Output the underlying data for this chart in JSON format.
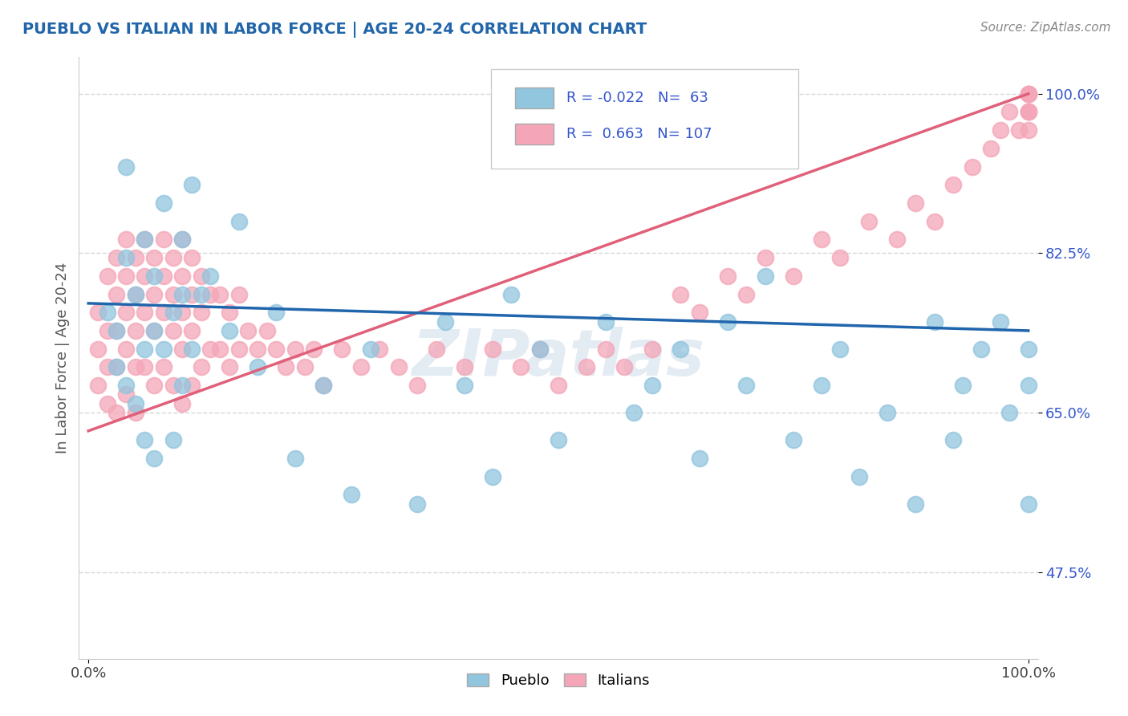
{
  "title": "PUEBLO VS ITALIAN IN LABOR FORCE | AGE 20-24 CORRELATION CHART",
  "source_text": "Source: ZipAtlas.com",
  "ylabel": "In Labor Force | Age 20-24",
  "watermark_text": "ZIPatlas",
  "legend_blue_label": "Pueblo",
  "legend_pink_label": "Italians",
  "blue_R": -0.022,
  "blue_N": 63,
  "pink_R": 0.663,
  "pink_N": 107,
  "blue_color": "#92c5de",
  "pink_color": "#f4a6b8",
  "blue_line_color": "#2166ac",
  "pink_line_color": "#e0607a",
  "ymin": 0.38,
  "ymax": 1.04,
  "ytick_vals": [
    0.475,
    0.65,
    0.825,
    1.0
  ],
  "ytick_labels": [
    "47.5%",
    "65.0%",
    "82.5%",
    "100.0%"
  ],
  "pueblo_x": [
    0.02,
    0.03,
    0.03,
    0.04,
    0.04,
    0.04,
    0.05,
    0.05,
    0.06,
    0.06,
    0.06,
    0.07,
    0.07,
    0.07,
    0.08,
    0.08,
    0.09,
    0.09,
    0.1,
    0.1,
    0.1,
    0.11,
    0.11,
    0.12,
    0.13,
    0.15,
    0.16,
    0.18,
    0.2,
    0.22,
    0.25,
    0.28,
    0.3,
    0.35,
    0.38,
    0.4,
    0.43,
    0.45,
    0.48,
    0.5,
    0.55,
    0.58,
    0.6,
    0.63,
    0.65,
    0.68,
    0.7,
    0.72,
    0.75,
    0.78,
    0.8,
    0.82,
    0.85,
    0.88,
    0.9,
    0.92,
    0.93,
    0.95,
    0.97,
    0.98,
    1.0,
    1.0,
    1.0
  ],
  "pueblo_y": [
    0.76,
    0.74,
    0.7,
    0.92,
    0.82,
    0.68,
    0.78,
    0.66,
    0.84,
    0.72,
    0.62,
    0.8,
    0.74,
    0.6,
    0.88,
    0.72,
    0.76,
    0.62,
    0.84,
    0.78,
    0.68,
    0.9,
    0.72,
    0.78,
    0.8,
    0.74,
    0.86,
    0.7,
    0.76,
    0.6,
    0.68,
    0.56,
    0.72,
    0.55,
    0.75,
    0.68,
    0.58,
    0.78,
    0.72,
    0.62,
    0.75,
    0.65,
    0.68,
    0.72,
    0.6,
    0.75,
    0.68,
    0.8,
    0.62,
    0.68,
    0.72,
    0.58,
    0.65,
    0.55,
    0.75,
    0.62,
    0.68,
    0.72,
    0.75,
    0.65,
    0.68,
    0.55,
    0.72
  ],
  "italian_x": [
    0.01,
    0.01,
    0.01,
    0.02,
    0.02,
    0.02,
    0.02,
    0.03,
    0.03,
    0.03,
    0.03,
    0.03,
    0.04,
    0.04,
    0.04,
    0.04,
    0.04,
    0.05,
    0.05,
    0.05,
    0.05,
    0.05,
    0.06,
    0.06,
    0.06,
    0.06,
    0.07,
    0.07,
    0.07,
    0.07,
    0.08,
    0.08,
    0.08,
    0.08,
    0.09,
    0.09,
    0.09,
    0.09,
    0.1,
    0.1,
    0.1,
    0.1,
    0.1,
    0.11,
    0.11,
    0.11,
    0.11,
    0.12,
    0.12,
    0.12,
    0.13,
    0.13,
    0.14,
    0.14,
    0.15,
    0.15,
    0.16,
    0.16,
    0.17,
    0.18,
    0.19,
    0.2,
    0.21,
    0.22,
    0.23,
    0.24,
    0.25,
    0.27,
    0.29,
    0.31,
    0.33,
    0.35,
    0.37,
    0.4,
    0.43,
    0.46,
    0.48,
    0.5,
    0.53,
    0.55,
    0.57,
    0.6,
    0.63,
    0.65,
    0.68,
    0.7,
    0.72,
    0.75,
    0.78,
    0.8,
    0.83,
    0.86,
    0.88,
    0.9,
    0.92,
    0.94,
    0.96,
    0.97,
    0.98,
    0.99,
    1.0,
    1.0,
    1.0,
    1.0,
    1.0,
    1.0,
    1.0
  ],
  "italian_y": [
    0.76,
    0.72,
    0.68,
    0.8,
    0.74,
    0.7,
    0.66,
    0.82,
    0.78,
    0.74,
    0.7,
    0.65,
    0.84,
    0.8,
    0.76,
    0.72,
    0.67,
    0.82,
    0.78,
    0.74,
    0.7,
    0.65,
    0.84,
    0.8,
    0.76,
    0.7,
    0.82,
    0.78,
    0.74,
    0.68,
    0.84,
    0.8,
    0.76,
    0.7,
    0.82,
    0.78,
    0.74,
    0.68,
    0.84,
    0.8,
    0.76,
    0.72,
    0.66,
    0.82,
    0.78,
    0.74,
    0.68,
    0.8,
    0.76,
    0.7,
    0.78,
    0.72,
    0.78,
    0.72,
    0.76,
    0.7,
    0.78,
    0.72,
    0.74,
    0.72,
    0.74,
    0.72,
    0.7,
    0.72,
    0.7,
    0.72,
    0.68,
    0.72,
    0.7,
    0.72,
    0.7,
    0.68,
    0.72,
    0.7,
    0.72,
    0.7,
    0.72,
    0.68,
    0.7,
    0.72,
    0.7,
    0.72,
    0.78,
    0.76,
    0.8,
    0.78,
    0.82,
    0.8,
    0.84,
    0.82,
    0.86,
    0.84,
    0.88,
    0.86,
    0.9,
    0.92,
    0.94,
    0.96,
    0.98,
    0.96,
    0.98,
    1.0,
    0.96,
    0.98,
    1.0,
    0.98,
    1.0
  ]
}
